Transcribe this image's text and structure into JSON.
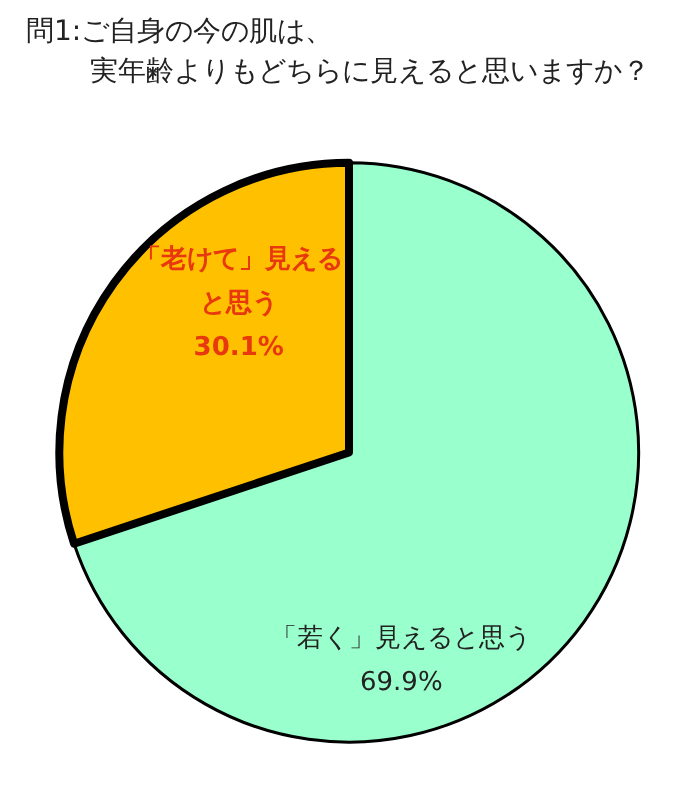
{
  "chart_data": {
    "type": "pie",
    "title": "問1:ご自身の今の肌は、",
    "subtitle": "実年齢よりもどちらに見えると思いますか？",
    "categories": [
      "「若く」見えると思う",
      "「老けて」見えると思う"
    ],
    "values": [
      69.9,
      30.1
    ],
    "value_labels": [
      "69.9%",
      "30.1%"
    ],
    "colors": [
      "#99ffcc",
      "#ffc000"
    ]
  }
}
